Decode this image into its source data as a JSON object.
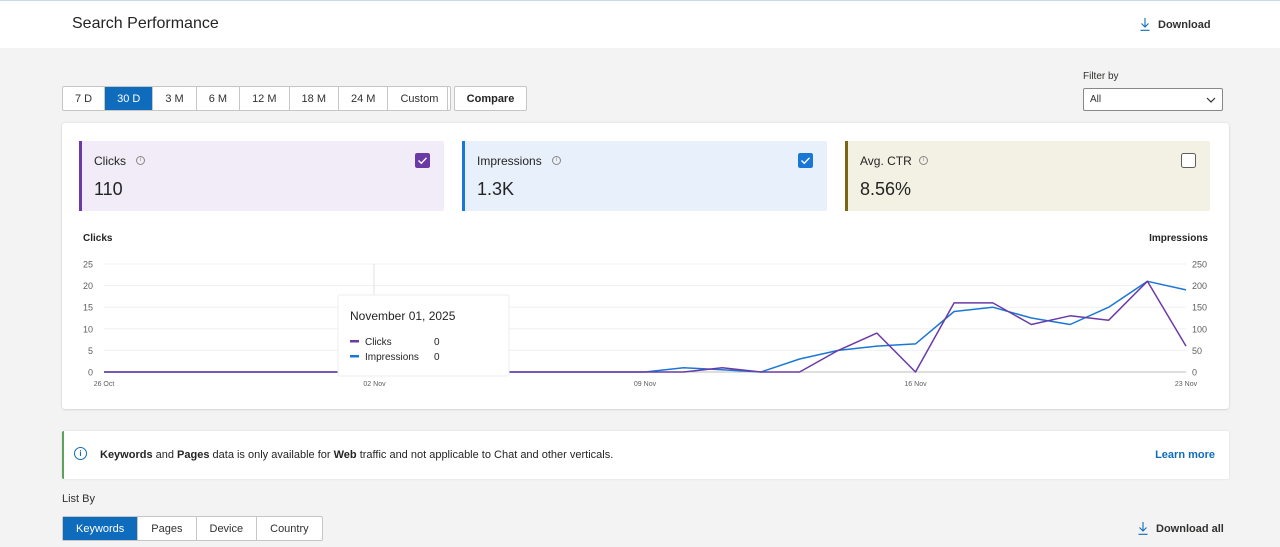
{
  "header": {
    "title": "Search Performance",
    "download_label": "Download"
  },
  "date_ranges": [
    {
      "label": "7 D",
      "active": false
    },
    {
      "label": "30 D",
      "active": true
    },
    {
      "label": "3 M",
      "active": false
    },
    {
      "label": "6 M",
      "active": false
    },
    {
      "label": "12 M",
      "active": false
    },
    {
      "label": "18 M",
      "active": false
    },
    {
      "label": "24 M",
      "active": false
    },
    {
      "label": "Custom",
      "active": false
    }
  ],
  "compare_label": "Compare",
  "filter": {
    "label": "Filter by",
    "value": "All"
  },
  "metrics": [
    {
      "label": "Clicks",
      "value": "110",
      "checked": true,
      "color": "#6b3aa6"
    },
    {
      "label": "Impressions",
      "value": "1.3K",
      "checked": true,
      "color": "#1a78d4"
    },
    {
      "label": "Avg. CTR",
      "value": "8.56%",
      "checked": false,
      "color": "#7d6511"
    }
  ],
  "chart_data": {
    "type": "line",
    "left_axis_title": "Clicks",
    "right_axis_title": "Impressions",
    "left_ticks": [
      "25",
      "20",
      "15",
      "10",
      "5",
      "0"
    ],
    "right_ticks": [
      "250",
      "200",
      "150",
      "100",
      "50",
      "0"
    ],
    "ylim_left": [
      0,
      25
    ],
    "ylim_right": [
      0,
      250
    ],
    "x_tick_labels": [
      "26 Oct",
      "02 Nov",
      "09 Nov",
      "16 Nov",
      "23 Nov"
    ],
    "x_tick_indices": [
      0,
      7,
      14,
      21,
      28
    ],
    "series": [
      {
        "name": "Clicks",
        "color": "#6b3aa6",
        "axis": "left",
        "values": [
          0,
          0,
          0,
          0,
          0,
          0,
          0,
          0,
          0,
          0,
          0,
          0,
          0,
          0,
          0,
          0,
          1,
          0,
          0,
          5,
          9,
          0,
          16,
          16,
          11,
          13,
          12,
          21,
          6
        ]
      },
      {
        "name": "Impressions",
        "color": "#1a78d4",
        "axis": "right",
        "values": [
          0,
          0,
          0,
          0,
          0,
          0,
          0,
          0,
          0,
          0,
          0,
          0,
          0,
          0,
          0,
          10,
          5,
          0,
          30,
          50,
          60,
          65,
          140,
          150,
          125,
          110,
          150,
          210,
          190
        ]
      }
    ],
    "tooltip": {
      "date": "November 01, 2025",
      "rows": [
        {
          "name": "Clicks",
          "value": "0",
          "color": "#6b3aa6"
        },
        {
          "name": "Impressions",
          "value": "0",
          "color": "#1a78d4"
        }
      ]
    }
  },
  "banner": {
    "part1": "Keywords",
    "part2": " and ",
    "part3": "Pages",
    "part4": " data is only available for ",
    "part5": "Web",
    "part6": " traffic and not applicable to Chat and other verticals.",
    "learn_more": "Learn more"
  },
  "list_by": {
    "label": "List By",
    "tabs": [
      {
        "label": "Keywords",
        "active": true
      },
      {
        "label": "Pages",
        "active": false
      },
      {
        "label": "Device",
        "active": false
      },
      {
        "label": "Country",
        "active": false
      }
    ],
    "download_all": "Download all"
  }
}
